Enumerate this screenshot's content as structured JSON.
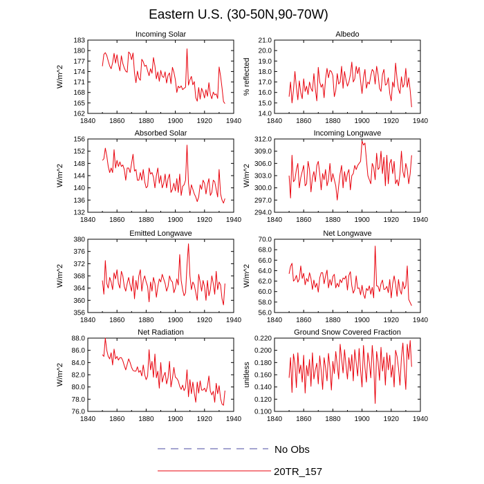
{
  "title": "Eastern U.S. (30-50N,90-70W)",
  "legend": {
    "entries": [
      {
        "label": "No Obs",
        "color": "#4a4aa0",
        "style": "dashed"
      },
      {
        "label": "20TR_157",
        "color": "#e8000b",
        "style": "solid"
      }
    ]
  },
  "chart_data": [
    {
      "type": "line",
      "title": "Incoming Solar",
      "xlabel": "",
      "ylabel": "W/m^2",
      "xlim": [
        1840,
        1940
      ],
      "ylim": [
        162,
        183
      ],
      "xticks": [
        "1840",
        "1860",
        "1880",
        "1900",
        "1920",
        "1940"
      ],
      "yticks": [
        "162",
        "165",
        "168",
        "171",
        "174",
        "177",
        "180",
        "183"
      ],
      "series": [
        {
          "name": "20TR_157",
          "color": "#e8000b",
          "x_start": 1850,
          "x_step": 1,
          "values": [
            175.5,
            178.9,
            179.4,
            178.6,
            177.0,
            175.6,
            174.8,
            176.5,
            179.2,
            176.4,
            178.8,
            176.0,
            174.2,
            178.5,
            176.3,
            175.0,
            174.1,
            173.8,
            179.6,
            179.1,
            177.4,
            179.3,
            173.6,
            170.8,
            174.1,
            172.1,
            171.5,
            177.5,
            176.8,
            175.5,
            175.8,
            174.2,
            172.8,
            174.8,
            173.5,
            178.0,
            175.6,
            171.9,
            173.9,
            171.2,
            174.3,
            172.6,
            172.3,
            173.9,
            170.7,
            172.9,
            173.6,
            170.5,
            175.2,
            173.8,
            171.7,
            168.0,
            169.8,
            169.3,
            169.9,
            168.8,
            169.2,
            169.5,
            180.5,
            170.1,
            171.6,
            172.6,
            170.2,
            171.1,
            166.5,
            165.5,
            169.4,
            166.1,
            169.2,
            168.1,
            166.4,
            168.8,
            166.9,
            170.8,
            167.5,
            166.2,
            168.1,
            167.3,
            167.6,
            166.3,
            175.3,
            172.7,
            169.3,
            165.4,
            164.8
          ]
        }
      ]
    },
    {
      "type": "line",
      "title": "Albedo",
      "xlabel": "",
      "ylabel": "% reflected",
      "xlim": [
        1840,
        1940
      ],
      "ylim": [
        14.0,
        21.0
      ],
      "xticks": [
        "1840",
        "1860",
        "1880",
        "1900",
        "1920",
        "1940"
      ],
      "yticks": [
        "14.0",
        "15.0",
        "16.0",
        "17.0",
        "18.0",
        "19.0",
        "20.0",
        "21.0"
      ],
      "series": [
        {
          "name": "20TR_157",
          "color": "#e8000b",
          "x_start": 1850,
          "x_step": 1,
          "values": [
            15.6,
            17.0,
            15.0,
            16.2,
            18.0,
            16.5,
            15.3,
            17.1,
            16.0,
            15.4,
            17.3,
            16.1,
            16.6,
            15.8,
            17.0,
            16.4,
            16.1,
            17.8,
            16.3,
            15.2,
            18.4,
            17.0,
            16.5,
            16.8,
            15.5,
            17.3,
            18.3,
            17.4,
            18.1,
            18.0,
            17.6,
            15.6,
            16.2,
            17.8,
            16.8,
            17.0,
            18.5,
            16.4,
            18.0,
            17.2,
            16.6,
            17.0,
            17.7,
            18.9,
            17.0,
            17.3,
            18.5,
            17.8,
            18.4,
            17.1,
            15.9,
            17.4,
            18.2,
            16.4,
            17.0,
            16.8,
            17.6,
            18.2,
            18.0,
            16.8,
            18.5,
            17.7,
            16.4,
            16.1,
            17.7,
            18.2,
            16.7,
            16.8,
            17.4,
            15.9,
            15.2,
            17.0,
            16.5,
            18.8,
            17.3,
            16.3,
            15.9,
            17.5,
            16.5,
            16.8,
            18.3,
            16.5,
            17.4,
            16.2,
            14.6
          ]
        }
      ]
    },
    {
      "type": "line",
      "title": "Absorbed Solar",
      "xlabel": "",
      "ylabel": "W/m^2",
      "xlim": [
        1840,
        1940
      ],
      "ylim": [
        132,
        156
      ],
      "xticks": [
        "1840",
        "1860",
        "1880",
        "1900",
        "1920",
        "1940"
      ],
      "yticks": [
        "132",
        "136",
        "140",
        "144",
        "148",
        "152",
        "156"
      ],
      "series": [
        {
          "name": "20TR_157",
          "color": "#e8000b",
          "x_start": 1850,
          "x_step": 1,
          "values": [
            149.0,
            149.5,
            153.0,
            150.5,
            147.0,
            145.0,
            146.5,
            145.0,
            152.5,
            146.5,
            149.0,
            147.0,
            148.5,
            147.0,
            147.5,
            146.0,
            142.5,
            146.5,
            146.5,
            145.0,
            148.0,
            151.0,
            145.5,
            146.0,
            142.5,
            142.5,
            145.0,
            142.5,
            146.0,
            142.0,
            140.0,
            140.5,
            146.5,
            144.5,
            145.0,
            143.5,
            140.0,
            144.0,
            146.5,
            141.5,
            144.0,
            140.0,
            141.5,
            144.5,
            140.0,
            143.0,
            144.5,
            138.5,
            139.5,
            141.5,
            139.0,
            143.0,
            138.5,
            144.5,
            137.5,
            140.5,
            141.0,
            142.5,
            154.0,
            141.5,
            137.5,
            141.0,
            139.5,
            138.0,
            137.0,
            135.5,
            137.0,
            141.0,
            139.5,
            142.5,
            141.5,
            138.0,
            141.0,
            143.0,
            137.5,
            138.5,
            142.5,
            142.0,
            139.5,
            137.0,
            146.0,
            138.0,
            136.0,
            135.0,
            136.5
          ]
        }
      ]
    },
    {
      "type": "line",
      "title": "Incoming Longwave",
      "xlabel": "",
      "ylabel": "W/m^2",
      "xlim": [
        1840,
        1940
      ],
      "ylim": [
        294.0,
        312.0
      ],
      "xticks": [
        "1840",
        "1860",
        "1880",
        "1900",
        "1920",
        "1940"
      ],
      "yticks": [
        "294.0",
        "297.0",
        "300.0",
        "303.0",
        "306.0",
        "309.0",
        "312.0"
      ],
      "series": [
        {
          "name": "20TR_157",
          "color": "#e8000b",
          "x_start": 1850,
          "x_step": 1,
          "values": [
            303.0,
            297.5,
            308.0,
            301.5,
            302.0,
            304.5,
            306.0,
            300.0,
            302.5,
            304.0,
            305.5,
            300.5,
            301.0,
            306.5,
            304.5,
            299.0,
            302.5,
            304.0,
            301.5,
            305.5,
            306.5,
            303.5,
            299.5,
            303.5,
            302.0,
            304.5,
            300.5,
            302.0,
            306.0,
            301.5,
            303.5,
            302.0,
            300.5,
            297.0,
            300.5,
            303.5,
            305.5,
            300.0,
            304.0,
            301.5,
            303.5,
            304.5,
            299.5,
            303.0,
            303.5,
            305.5,
            304.5,
            305.5,
            306.0,
            306.5,
            311.5,
            310.5,
            311.0,
            307.0,
            303.0,
            302.0,
            301.0,
            306.0,
            305.0,
            302.0,
            308.5,
            304.5,
            305.0,
            309.0,
            303.5,
            307.5,
            300.5,
            308.0,
            301.0,
            306.0,
            307.0,
            303.5,
            306.5,
            301.0,
            302.0,
            300.5,
            303.5,
            309.0,
            304.0,
            302.5,
            306.0,
            304.5,
            301.0,
            303.5,
            308.0
          ]
        }
      ]
    },
    {
      "type": "line",
      "title": "Emitted Longwave",
      "xlabel": "",
      "ylabel": "W/m^2",
      "xlim": [
        1840,
        1940
      ],
      "ylim": [
        356,
        380
      ],
      "xticks": [
        "1840",
        "1860",
        "1880",
        "1900",
        "1920",
        "1940"
      ],
      "yticks": [
        "356",
        "360",
        "364",
        "368",
        "372",
        "376",
        "380"
      ],
      "series": [
        {
          "name": "20TR_157",
          "color": "#e8000b",
          "x_start": 1850,
          "x_step": 1,
          "values": [
            366.5,
            362.0,
            373.0,
            365.5,
            364.0,
            367.5,
            366.0,
            363.5,
            369.0,
            367.0,
            370.0,
            365.5,
            364.0,
            369.5,
            368.0,
            364.5,
            363.0,
            365.5,
            367.5,
            365.0,
            363.0,
            368.0,
            360.5,
            366.5,
            363.5,
            368.0,
            370.0,
            363.0,
            366.5,
            368.0,
            366.0,
            364.5,
            359.5,
            366.0,
            363.0,
            367.5,
            365.5,
            361.0,
            364.5,
            367.0,
            366.0,
            368.5,
            367.0,
            365.5,
            363.0,
            364.5,
            368.0,
            366.5,
            366.0,
            362.5,
            364.0,
            367.0,
            365.0,
            375.0,
            366.5,
            363.5,
            361.5,
            362.5,
            371.5,
            378.5,
            368.0,
            363.5,
            366.0,
            365.0,
            362.5,
            360.0,
            368.5,
            366.0,
            363.0,
            366.5,
            364.5,
            360.0,
            366.5,
            361.5,
            363.5,
            368.0,
            365.5,
            362.0,
            369.5,
            363.5,
            366.0,
            365.0,
            360.5,
            358.5,
            365.5
          ]
        }
      ]
    },
    {
      "type": "line",
      "title": "Net Longwave",
      "xlabel": "",
      "ylabel": "W/m^2",
      "xlim": [
        1840,
        1940
      ],
      "ylim": [
        56.0,
        70.0
      ],
      "xticks": [
        "1840",
        "1860",
        "1880",
        "1900",
        "1920",
        "1940"
      ],
      "yticks": [
        "56.0",
        "58.0",
        "60.0",
        "62.0",
        "64.0",
        "66.0",
        "68.0",
        "70.0"
      ],
      "series": [
        {
          "name": "20TR_157",
          "color": "#e8000b",
          "x_start": 1850,
          "x_step": 1,
          "values": [
            63.4,
            64.8,
            65.4,
            62.0,
            62.3,
            63.1,
            61.8,
            62.4,
            64.9,
            62.5,
            63.5,
            61.3,
            62.5,
            61.9,
            63.6,
            62.5,
            60.4,
            62.2,
            60.8,
            61.6,
            59.9,
            62.6,
            63.6,
            63.6,
            61.5,
            63.0,
            64.1,
            60.7,
            62.3,
            61.2,
            62.9,
            63.3,
            60.7,
            61.6,
            60.9,
            62.3,
            61.7,
            62.6,
            62.4,
            63.0,
            60.3,
            63.1,
            63.8,
            61.1,
            59.7,
            60.4,
            63.0,
            60.6,
            60.7,
            59.4,
            61.2,
            59.5,
            58.7,
            60.6,
            60.2,
            61.1,
            59.5,
            60.8,
            58.8,
            68.7,
            61.1,
            61.0,
            60.0,
            61.5,
            62.2,
            60.4,
            60.5,
            61.0,
            59.8,
            62.3,
            58.8,
            61.5,
            63.0,
            61.4,
            59.1,
            62.3,
            60.3,
            59.5,
            61.9,
            60.5,
            61.1,
            64.9,
            58.5,
            57.9,
            57.3
          ]
        }
      ]
    },
    {
      "type": "line",
      "title": "Net Radiation",
      "xlabel": "",
      "ylabel": "W/m^2",
      "xlim": [
        1840,
        1940
      ],
      "ylim": [
        76.0,
        88.0
      ],
      "xticks": [
        "1840",
        "1860",
        "1880",
        "1900",
        "1920",
        "1940"
      ],
      "yticks": [
        "76.0",
        "78.0",
        "80.0",
        "82.0",
        "84.0",
        "86.0",
        "88.0"
      ],
      "series": [
        {
          "name": "20TR_157",
          "color": "#e8000b",
          "x_start": 1850,
          "x_step": 1,
          "values": [
            85.3,
            85.0,
            88.0,
            86.0,
            85.0,
            84.6,
            85.6,
            83.6,
            86.2,
            84.6,
            85.0,
            84.4,
            84.8,
            84.8,
            84.3,
            83.5,
            82.8,
            83.7,
            84.6,
            84.0,
            83.2,
            82.7,
            82.6,
            82.6,
            83.3,
            82.4,
            82.7,
            81.8,
            83.6,
            82.0,
            81.2,
            81.8,
            86.1,
            82.8,
            84.2,
            81.6,
            85.4,
            81.5,
            82.6,
            79.8,
            84.0,
            80.8,
            81.8,
            82.4,
            80.5,
            81.5,
            84.2,
            80.0,
            81.4,
            83.2,
            81.6,
            81.4,
            81.0,
            80.1,
            79.6,
            80.3,
            79.4,
            79.9,
            82.8,
            78.4,
            81.2,
            78.9,
            80.8,
            79.0,
            77.5,
            80.8,
            79.0,
            81.0,
            79.5,
            79.5,
            79.8,
            79.2,
            80.1,
            81.8,
            79.3,
            78.7,
            79.3,
            77.5,
            80.6,
            78.9,
            80.2,
            78.1,
            77.2,
            77.0,
            79.4
          ]
        }
      ]
    },
    {
      "type": "line",
      "title": "Ground Snow Covered Fraction",
      "xlabel": "",
      "ylabel": "unitless",
      "xlim": [
        1840,
        1940
      ],
      "ylim": [
        0.1,
        0.22
      ],
      "xticks": [
        "1840",
        "1860",
        "1880",
        "1900",
        "1920",
        "1940"
      ],
      "yticks": [
        "0.100",
        "0.120",
        "0.140",
        "0.160",
        "0.180",
        "0.200",
        "0.220"
      ],
      "series": [
        {
          "name": "20TR_157",
          "color": "#e8000b",
          "x_start": 1850,
          "x_step": 1,
          "values": [
            0.155,
            0.188,
            0.131,
            0.194,
            0.178,
            0.139,
            0.196,
            0.162,
            0.176,
            0.148,
            0.192,
            0.13,
            0.175,
            0.158,
            0.185,
            0.141,
            0.196,
            0.153,
            0.168,
            0.179,
            0.145,
            0.191,
            0.167,
            0.136,
            0.188,
            0.171,
            0.15,
            0.195,
            0.172,
            0.135,
            0.182,
            0.162,
            0.198,
            0.176,
            0.153,
            0.21,
            0.186,
            0.163,
            0.201,
            0.176,
            0.153,
            0.188,
            0.166,
            0.193,
            0.15,
            0.201,
            0.18,
            0.158,
            0.203,
            0.168,
            0.14,
            0.208,
            0.172,
            0.148,
            0.196,
            0.18,
            0.155,
            0.208,
            0.178,
            0.113,
            0.198,
            0.181,
            0.151,
            0.205,
            0.166,
            0.189,
            0.143,
            0.196,
            0.168,
            0.192,
            0.156,
            0.176,
            0.14,
            0.2,
            0.19,
            0.171,
            0.143,
            0.188,
            0.212,
            0.17,
            0.136,
            0.21,
            0.185,
            0.216,
            0.173
          ]
        }
      ]
    }
  ]
}
